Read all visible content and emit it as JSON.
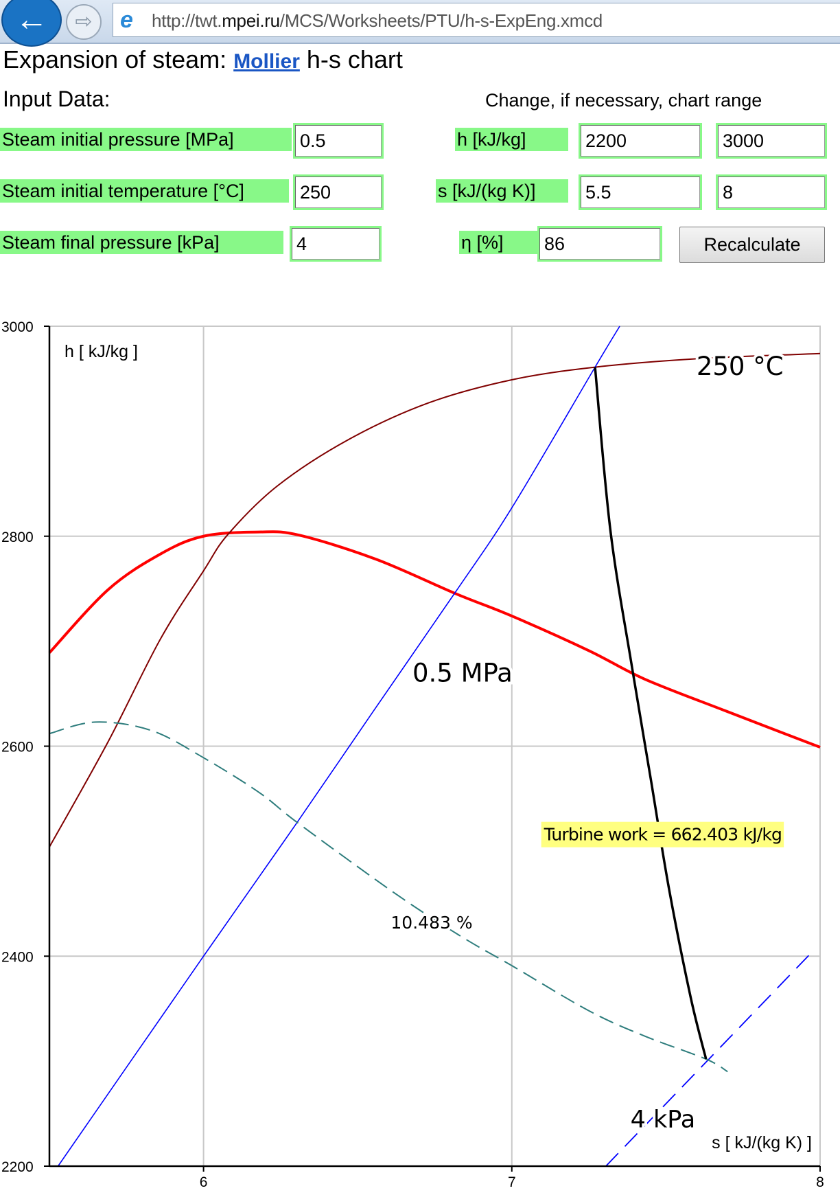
{
  "browser": {
    "url_prefix": "http://twt.",
    "url_host": "mpei.ru",
    "url_path": "/MCS/Worksheets/PTU/h-s-ExpEng.xmcd",
    "back_icon": "arrow-left",
    "forward_icon": "arrow-right",
    "browser_icon": "internet-explorer-logo"
  },
  "page": {
    "title_prefix": "Expansion of steam: ",
    "title_link": "Mollier",
    "title_suffix": " h-s chart",
    "input_data_label": "Input Data:",
    "range_header": "Change, if necessary, chart range"
  },
  "inputs": {
    "p1_label": "Steam initial pressure [MPa]",
    "p1_value": "0.5",
    "t1_label": "Steam initial temperature [°C]",
    "t1_value": "250",
    "p2_label": "Steam final pressure [kPa]",
    "p2_value": "4",
    "h_label": "h [kJ/kg]",
    "h_min": "2200",
    "h_max": "3000",
    "s_label": "s [kJ/(kg K)]",
    "s_min": "5.5",
    "s_max": "8",
    "eta_label": "η [%]",
    "eta_value": "86",
    "recalc_label": "Recalculate"
  },
  "colors": {
    "label_bg": "#88f888",
    "link": "#1a56c4"
  },
  "chart_data": {
    "type": "line",
    "xlabel": "s [ kJ/(kg K) ]",
    "ylabel": "h [ kJ/kg ]",
    "xlim": [
      5.5,
      8
    ],
    "ylim": [
      2200,
      3000
    ],
    "xticks": [
      6,
      7,
      8
    ],
    "xtick_labels": [
      "6",
      "7",
      "8"
    ],
    "yticks": [
      2200,
      2400,
      2600,
      2800,
      3000
    ],
    "ytick_labels": [
      "2200",
      "2400",
      "2600",
      "2800",
      "3000"
    ],
    "grid": true,
    "series": [
      {
        "id": "saturation",
        "color": "#ff0000",
        "dashed": false,
        "points": [
          [
            5.5,
            2689
          ],
          [
            5.69,
            2749
          ],
          [
            5.86,
            2783
          ],
          [
            6.0,
            2800
          ],
          [
            6.18,
            2804
          ],
          [
            6.31,
            2801
          ],
          [
            6.56,
            2778
          ],
          [
            6.82,
            2745
          ],
          [
            7.0,
            2724
          ],
          [
            7.25,
            2691
          ],
          [
            7.43,
            2664
          ],
          [
            7.69,
            2634
          ],
          [
            8.0,
            2599
          ]
        ]
      },
      {
        "id": "isotherm",
        "color": "#800000",
        "dashed": false,
        "points": [
          [
            5.5,
            2504
          ],
          [
            5.69,
            2604
          ],
          [
            5.86,
            2702
          ],
          [
            6.0,
            2767
          ],
          [
            6.08,
            2802
          ],
          [
            6.24,
            2848
          ],
          [
            6.47,
            2892
          ],
          [
            6.73,
            2927
          ],
          [
            7.0,
            2949
          ],
          [
            7.27,
            2961
          ],
          [
            7.6,
            2969
          ],
          [
            8.0,
            2974
          ]
        ]
      },
      {
        "id": "isobar-initial",
        "color": "#0000ff",
        "dashed": false,
        "points": [
          [
            5.528,
            2200
          ],
          [
            6.0,
            2400
          ],
          [
            6.305,
            2528
          ],
          [
            6.55,
            2633
          ],
          [
            6.82,
            2748
          ],
          [
            7.0,
            2827
          ],
          [
            7.27,
            2961
          ],
          [
            7.35,
            3000
          ]
        ]
      },
      {
        "id": "isobar-final",
        "color": "#0000ff",
        "dashed": true,
        "points": [
          [
            7.305,
            2200
          ],
          [
            7.974,
            2404
          ]
        ]
      },
      {
        "id": "dryness-line",
        "color": "#2e7d7d",
        "dashed": true,
        "points": [
          [
            5.5,
            2612
          ],
          [
            5.65,
            2623
          ],
          [
            5.83,
            2615
          ],
          [
            6.0,
            2589
          ],
          [
            6.18,
            2556
          ],
          [
            6.31,
            2526
          ],
          [
            6.63,
            2458
          ],
          [
            6.84,
            2418
          ],
          [
            7.0,
            2391
          ],
          [
            7.25,
            2348
          ],
          [
            7.43,
            2324
          ],
          [
            7.63,
            2302
          ],
          [
            7.7,
            2290
          ]
        ]
      },
      {
        "id": "expansion",
        "color": "#000000",
        "dashed": false,
        "points": [
          [
            7.27,
            2961
          ],
          [
            7.32,
            2805
          ],
          [
            7.39,
            2675
          ],
          [
            7.45,
            2570
          ],
          [
            7.51,
            2464
          ],
          [
            7.58,
            2361
          ],
          [
            7.63,
            2302
          ]
        ]
      }
    ],
    "annotations": [
      {
        "id": "isotherm-label",
        "text": "250 °C",
        "s": 7.74,
        "h": 2962
      },
      {
        "id": "isobar-initial-label",
        "text": "0.5 MPa",
        "s": 6.84,
        "h": 2670
      },
      {
        "id": "isobar-final-label",
        "text": "4 kPa",
        "s": 7.49,
        "h": 2245
      },
      {
        "id": "dryness-label",
        "text": "10.483 %",
        "s": 6.74,
        "h": 2432
      },
      {
        "id": "turbine-work-label",
        "text": "Turbine work = 662.403 kJ/kg",
        "s": 7.49,
        "h": 2516,
        "bg": "#ffff80"
      }
    ]
  }
}
